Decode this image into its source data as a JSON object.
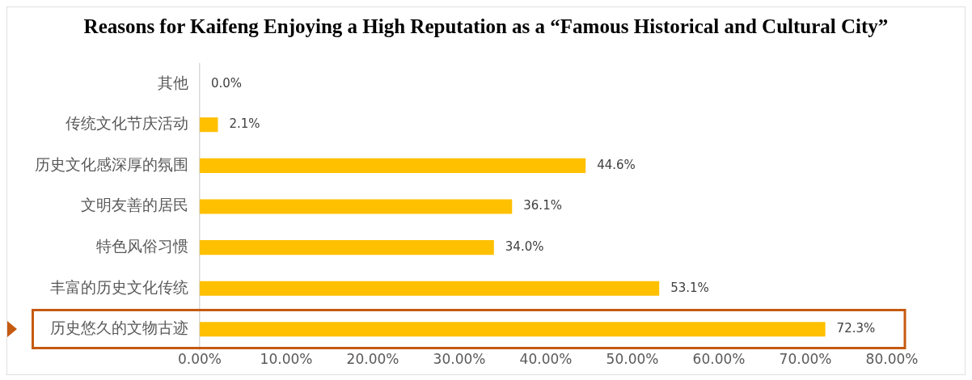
{
  "chart_data": {
    "type": "bar",
    "orientation": "horizontal",
    "title": "Reasons for Kaifeng Enjoying a High Reputation as a “Famous Historical and Cultural City”",
    "categories": [
      "其他",
      "传统文化节庆活动",
      "历史文化感深厚的氛围",
      "文明友善的居民",
      "特色风俗习惯",
      "丰富的历史文化传统",
      "历史悠久的文物古迹"
    ],
    "values": [
      0.0,
      2.1,
      44.6,
      36.1,
      34.0,
      53.1,
      72.3
    ],
    "value_labels": [
      "0.0%",
      "2.1%",
      "44.6%",
      "36.1%",
      "34.0%",
      "53.1%",
      "72.3%"
    ],
    "color": "#ffc000",
    "xlim": [
      0,
      80
    ],
    "xticks": [
      {
        "value": 0,
        "label": "0.00%"
      },
      {
        "value": 10,
        "label": "10.00%"
      },
      {
        "value": 20,
        "label": "20.00%"
      },
      {
        "value": 30,
        "label": "30.00%"
      },
      {
        "value": 40,
        "label": "40.00%"
      },
      {
        "value": 50,
        "label": "50.00%"
      },
      {
        "value": 60,
        "label": "60.00%"
      },
      {
        "value": 70,
        "label": "70.00%"
      },
      {
        "value": 80,
        "label": "80.00%"
      }
    ],
    "grid": false,
    "legend": false
  }
}
